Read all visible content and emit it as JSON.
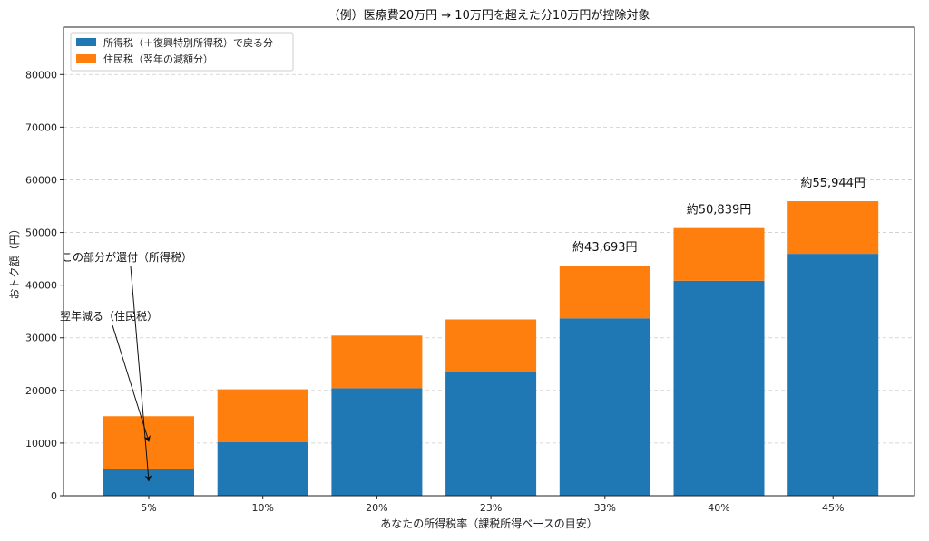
{
  "chart_data": {
    "type": "bar",
    "stacked": true,
    "title": "（例）医療費20万円 → 10万円を超えた分10万円が控除対象",
    "xlabel": "あなたの所得税率（課税所得ベースの目安）",
    "ylabel": "おトク額（円）",
    "ylim": [
      0,
      89000
    ],
    "yticks": [
      0,
      10000,
      20000,
      30000,
      40000,
      50000,
      60000,
      70000,
      80000
    ],
    "grid": true,
    "legend_position": "top-left",
    "categories": [
      "5%",
      "10%",
      "20%",
      "23%",
      "33%",
      "40%",
      "45%"
    ],
    "series": [
      {
        "name": "所得税（＋復興特別所得税）で戻る分",
        "color": "#1f77b4",
        "values": [
          5105,
          10210,
          20420,
          23483,
          33693,
          40839,
          45944
        ]
      },
      {
        "name": "住民税（翌年の減額分）",
        "color": "#ff7f0e",
        "values": [
          10000,
          10000,
          10000,
          10000,
          10000,
          10000,
          10000
        ]
      }
    ],
    "data_labels": [
      {
        "category": "33%",
        "text": "約43,693円"
      },
      {
        "category": "40%",
        "text": "約50,839円"
      },
      {
        "category": "45%",
        "text": "約55,944円"
      }
    ],
    "annotations": [
      {
        "text": "この部分が還付（所得税）",
        "category": "5%",
        "target_value": 2500
      },
      {
        "text": "翌年減る（住民税）",
        "category": "5%",
        "target_value": 10000
      }
    ]
  }
}
